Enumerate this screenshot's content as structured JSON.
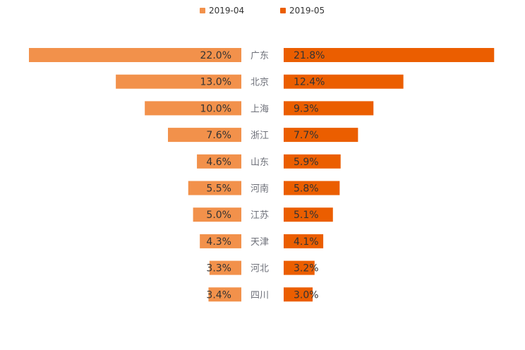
{
  "chart_data": {
    "type": "bar",
    "layout": "butterfly",
    "categories": [
      "广东",
      "北京",
      "上海",
      "浙江",
      "山东",
      "河南",
      "江苏",
      "天津",
      "河北",
      "四川"
    ],
    "series": [
      {
        "name": "2019-04",
        "color": "#f2914b",
        "values": [
          22.0,
          13.0,
          10.0,
          7.6,
          4.6,
          5.5,
          5.0,
          4.3,
          3.3,
          3.4
        ],
        "labels": [
          "22.0%",
          "13.0%",
          "10.0%",
          "7.6%",
          "4.6%",
          "5.5%",
          "5.0%",
          "4.3%",
          "3.3%",
          "3.4%"
        ]
      },
      {
        "name": "2019-05",
        "color": "#eb5e00",
        "values": [
          21.8,
          12.4,
          9.3,
          7.7,
          5.9,
          5.8,
          5.1,
          4.1,
          3.2,
          3.0
        ],
        "labels": [
          "21.8%",
          "12.4%",
          "9.3%",
          "7.7%",
          "5.9%",
          "5.8%",
          "5.1%",
          "4.1%",
          "3.2%",
          "3.0%"
        ]
      }
    ],
    "unit": "%",
    "legend_position": "top-center"
  }
}
